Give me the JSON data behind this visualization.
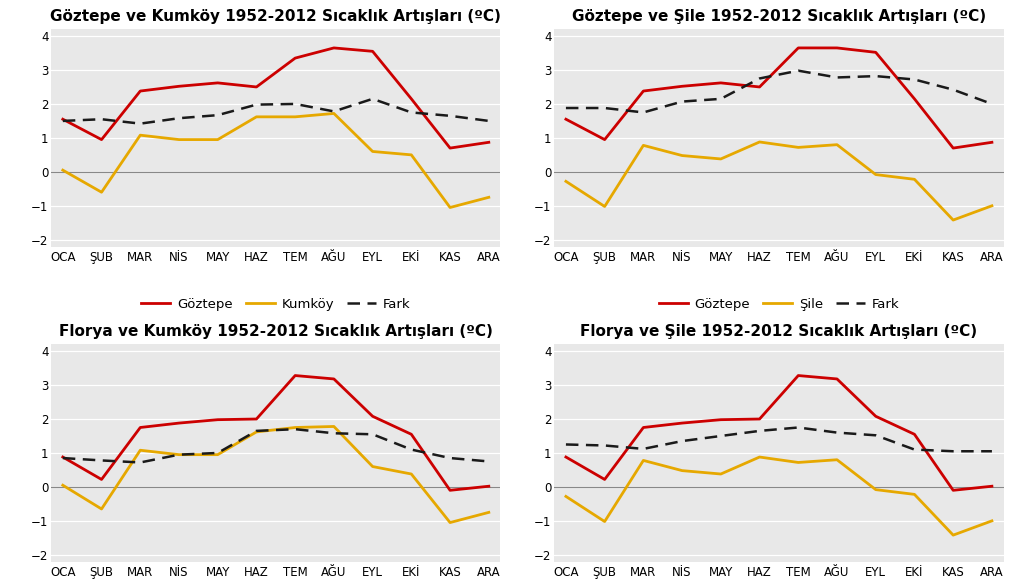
{
  "months": [
    "OCA",
    "ŞUB",
    "MAR",
    "NİS",
    "MAY",
    "HAZ",
    "TEM",
    "AĞU",
    "EYL",
    "EKİ",
    "KAS",
    "ARA"
  ],
  "charts": [
    {
      "title": "Göztepe ve Kumköy 1952-2012 Sıcaklık Artışları (ºC)",
      "line1_label": "Göztepe",
      "line2_label": "Kumköy",
      "line1": [
        1.55,
        0.95,
        2.38,
        2.52,
        2.62,
        2.5,
        3.35,
        3.65,
        3.55,
        2.15,
        0.7,
        0.87
      ],
      "line2": [
        0.05,
        -0.6,
        1.08,
        0.95,
        0.95,
        1.62,
        1.62,
        1.72,
        0.6,
        0.5,
        -1.05,
        -0.75
      ],
      "fark": [
        1.5,
        1.55,
        1.42,
        1.58,
        1.67,
        1.98,
        2.0,
        1.78,
        2.15,
        1.75,
        1.65,
        1.5
      ]
    },
    {
      "title": "Göztepe ve Şile 1952-2012 Sıcaklık Artışları (ºC)",
      "line1_label": "Göztepe",
      "line2_label": "Şile",
      "line1": [
        1.55,
        0.95,
        2.38,
        2.52,
        2.62,
        2.5,
        3.65,
        3.65,
        3.52,
        2.15,
        0.7,
        0.87
      ],
      "line2": [
        -0.28,
        -1.02,
        0.78,
        0.48,
        0.38,
        0.88,
        0.72,
        0.8,
        -0.08,
        -0.22,
        -1.42,
        -1.0
      ],
      "fark": [
        1.88,
        1.88,
        1.75,
        2.07,
        2.15,
        2.75,
        2.98,
        2.78,
        2.82,
        2.72,
        2.42,
        2.0
      ]
    },
    {
      "title": "Florya ve Kumköy 1952-2012 Sıcaklık Artışları (ºC)",
      "line1_label": "Florya",
      "line2_label": "Kumköy",
      "line1": [
        0.88,
        0.22,
        1.75,
        1.88,
        1.98,
        2.0,
        3.28,
        3.18,
        2.08,
        1.55,
        -0.1,
        0.02
      ],
      "line2": [
        0.05,
        -0.65,
        1.08,
        0.95,
        0.95,
        1.62,
        1.75,
        1.78,
        0.6,
        0.38,
        -1.05,
        -0.75
      ],
      "fark": [
        0.85,
        0.78,
        0.72,
        0.95,
        1.0,
        1.65,
        1.7,
        1.58,
        1.55,
        1.1,
        0.85,
        0.75
      ]
    },
    {
      "title": "Florya ve Şile 1952-2012 Sıcaklık Artışları (ºC)",
      "line1_label": "Florya",
      "line2_label": "Şile",
      "line1": [
        0.88,
        0.22,
        1.75,
        1.88,
        1.98,
        2.0,
        3.28,
        3.18,
        2.08,
        1.55,
        -0.1,
        0.02
      ],
      "line2": [
        -0.28,
        -1.02,
        0.78,
        0.48,
        0.38,
        0.88,
        0.72,
        0.8,
        -0.08,
        -0.22,
        -1.42,
        -1.0
      ],
      "fark": [
        1.25,
        1.22,
        1.12,
        1.35,
        1.5,
        1.65,
        1.75,
        1.6,
        1.52,
        1.1,
        1.05,
        1.05
      ]
    }
  ],
  "line1_color": "#cc0000",
  "line2_color": "#e6a800",
  "fark_color": "#1a1a1a",
  "bg_color": "#e8e8e8",
  "fig_bg": "#ffffff",
  "ylim": [
    -2.2,
    4.2
  ],
  "yticks": [
    -2,
    -1,
    0,
    1,
    2,
    3,
    4
  ],
  "title_fontsize": 11,
  "legend_fontsize": 9.5,
  "tick_fontsize": 8.5
}
